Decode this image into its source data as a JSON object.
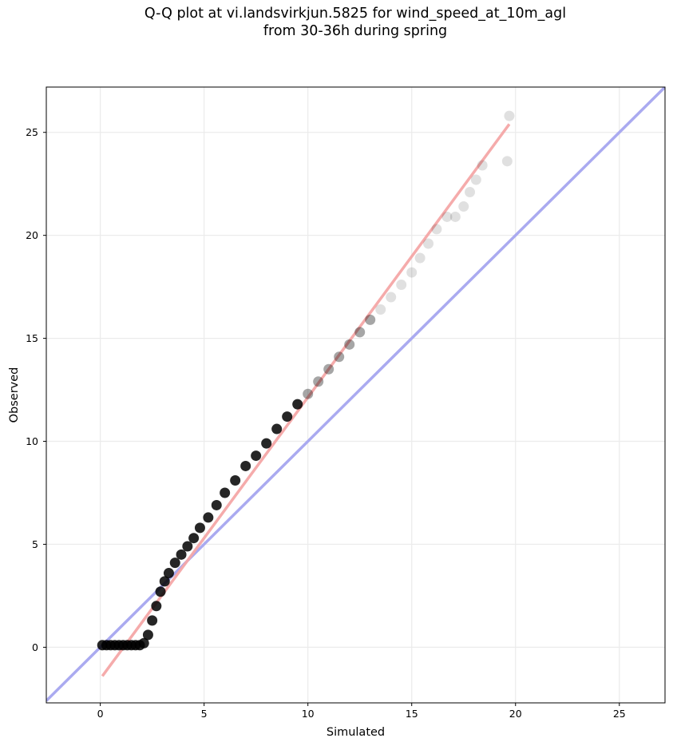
{
  "title_lines": [
    "Q-Q plot at vi.landsvirkjun.5825 for wind_speed_at_10m_agl",
    "from 30-36h during spring"
  ],
  "chart_data": {
    "type": "scatter",
    "title": "Q-Q plot at vi.landsvirkjun.5825 for wind_speed_at_10m_agl from 30-36h during spring",
    "xlabel": "Simulated",
    "ylabel": "Observed",
    "xlim": [
      -2.6,
      27.2
    ],
    "ylim": [
      -2.7,
      27.2
    ],
    "xticks": [
      0,
      5,
      10,
      15,
      20,
      25
    ],
    "yticks": [
      0,
      5,
      10,
      15,
      20,
      25
    ],
    "grid": true,
    "colors": {
      "points": "#000000",
      "fit_line": "#f4a6a6",
      "reference_line": "#aaaaf0",
      "grid": "#ebebeb"
    },
    "series": [
      {
        "type": "scatter",
        "x": [
          0.1,
          0.3,
          0.5,
          0.7,
          0.9,
          1.1,
          1.3,
          1.5,
          1.7,
          1.9,
          2.1,
          2.3,
          2.5,
          2.7,
          2.9,
          3.1,
          3.3,
          3.6,
          3.9,
          4.2,
          4.5,
          4.8,
          5.2,
          5.6,
          6.0,
          6.5,
          7.0,
          7.5,
          8.0,
          8.5,
          9.0,
          9.5,
          10.0,
          10.5,
          11.0,
          11.5,
          12.0,
          12.5,
          13.0,
          13.5,
          14.0,
          14.5,
          15.0,
          15.4,
          15.8,
          16.2,
          16.7,
          17.1,
          17.5,
          17.8,
          18.1,
          18.4,
          19.6,
          19.7
        ],
        "y": [
          0.1,
          0.1,
          0.1,
          0.1,
          0.1,
          0.1,
          0.1,
          0.1,
          0.1,
          0.1,
          0.2,
          0.6,
          1.3,
          2.0,
          2.7,
          3.2,
          3.6,
          4.1,
          4.5,
          4.9,
          5.3,
          5.8,
          6.3,
          6.9,
          7.5,
          8.1,
          8.8,
          9.3,
          9.9,
          10.6,
          11.2,
          11.8,
          12.3,
          12.9,
          13.5,
          14.1,
          14.7,
          15.3,
          15.9,
          16.4,
          17.0,
          17.6,
          18.2,
          18.9,
          19.6,
          20.3,
          20.9,
          20.9,
          21.4,
          22.1,
          22.7,
          23.4,
          23.6,
          25.8
        ]
      },
      {
        "type": "line",
        "name": "fit",
        "x": [
          0.1,
          19.7
        ],
        "y": [
          -1.4,
          25.4
        ]
      },
      {
        "type": "line",
        "name": "reference",
        "x": [
          -2.6,
          27.2
        ],
        "y": [
          -2.6,
          27.2
        ]
      }
    ]
  }
}
